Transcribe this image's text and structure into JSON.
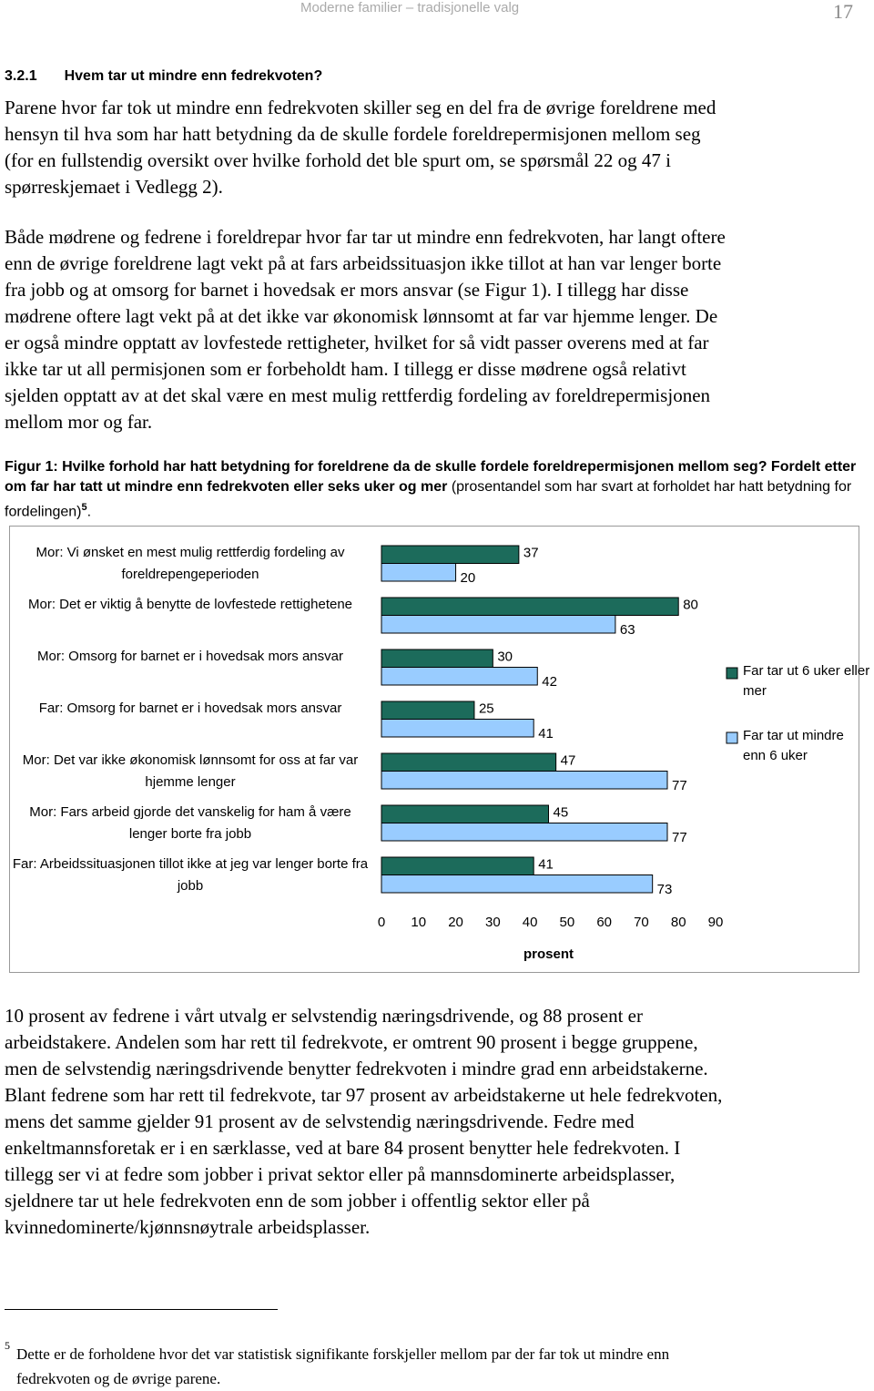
{
  "header": {
    "running_title": "Moderne familier – tradisjonelle valg",
    "page_number": "17"
  },
  "section": {
    "number": "3.2.1",
    "title": "Hvem tar ut mindre enn fedrekvoten?"
  },
  "paragraphs": [
    [
      "Parene hvor far tok ut mindre enn fedrekvoten skiller seg en del fra de øvrige foreldrene med",
      "hensyn til hva som har hatt betydning da de skulle fordele foreldrepermisjonen mellom seg",
      "(for en fullstendig oversikt over hvilke forhold det ble spurt om, se spørsmål 22 og 47 i",
      "spørreskjemaet i Vedlegg 2)."
    ],
    [
      "Både mødrene og fedrene i foreldrepar hvor far tar ut mindre enn fedrekvoten, har langt oftere",
      "enn de øvrige foreldrene lagt vekt på at fars arbeidssituasjon ikke tillot at han var lenger borte",
      "fra jobb og at omsorg for barnet i hovedsak er mors ansvar (se Figur 1). I tillegg har disse",
      "mødrene oftere lagt vekt på at det ikke var økonomisk lønnsomt at far var hjemme lenger. De",
      "er også mindre opptatt av lovfestede rettigheter, hvilket for så vidt passer overens med at far",
      "ikke tar ut all permisjonen som er forbeholdt ham. I tillegg er disse mødrene også relativt",
      "sjelden opptatt av at det skal være en mest mulig rettferdig fordeling av foreldrepermisjonen",
      "mellom mor og far."
    ],
    [
      "10 prosent av fedrene i vårt utvalg er selvstendig næringsdrivende, og 88 prosent er",
      "arbeidstakere. Andelen som har rett til fedrekvote, er omtrent 90 prosent i begge gruppene,",
      "men de selvstendig næringsdrivende benytter fedrekvoten i mindre grad enn arbeidstakerne.",
      "Blant fedrene som har rett til fedrekvote, tar 97 prosent av arbeidstakerne ut hele fedrekvoten,",
      "mens det samme gjelder 91 prosent av de selvstendig næringsdrivende. Fedre med",
      "enkeltmannsforetak er i en særklasse, ved at bare 84 prosent benytter hele fedrekvoten. I",
      "tillegg ser vi at fedre som jobber i privat sektor eller på mannsdominerte arbeidsplasser,",
      "sjeldnere tar ut hele fedrekvoten enn de som jobber i offentlig sektor eller på",
      "kvinnedominerte/kjønnsnøytrale arbeidsplasser."
    ]
  ],
  "figure": {
    "caption_bold": "Figur 1: Hvilke forhold har hatt betydning for foreldrene da de skulle fordele foreldrepermisjonen mellom seg? Fordelt etter om far har tatt ut mindre enn fedrekvoten eller seks uker og mer",
    "caption_normal": " (prosentandel som har svart at forholdet har hatt betydning for fordelingen)",
    "caption_note": "5",
    "caption_end": "."
  },
  "chart_data": {
    "type": "hbar",
    "categories": [
      "Mor: Vi ønsket en mest mulig rettferdig fordeling av foreldrepengeperioden",
      "Mor: Det er viktig å benytte de lovfestede rettighetene",
      "Mor: Omsorg for barnet er i hovedsak mors ansvar",
      "Far: Omsorg for barnet er i hovedsak mors ansvar",
      "Mor: Det var ikke økonomisk lønnsomt for oss at far var hjemme lenger",
      "Mor: Fars arbeid gjorde det vanskelig for ham å være lenger borte fra jobb",
      "Far: Arbeidssituasjonen tillot ikke at jeg var lenger borte fra jobb"
    ],
    "series": [
      {
        "name": "Far tar ut 6 uker eller mer",
        "color": "#1c6b5b",
        "values": [
          37,
          80,
          30,
          25,
          47,
          45,
          41
        ]
      },
      {
        "name": "Far tar ut mindre enn 6 uker",
        "color": "#99ccff",
        "values": [
          20,
          63,
          42,
          41,
          77,
          77,
          73
        ]
      }
    ],
    "xlim": [
      0,
      90
    ],
    "xticks": [
      0,
      10,
      20,
      30,
      40,
      50,
      60,
      70,
      80,
      90
    ],
    "xlabel": "prosent",
    "legend": "right"
  },
  "footnote": {
    "number": "5",
    "text": [
      "Dette er de forholdene hvor det var statistisk signifikante forskjeller mellom par der far tok ut mindre enn",
      "fedrekvoten og de øvrige parene."
    ]
  }
}
